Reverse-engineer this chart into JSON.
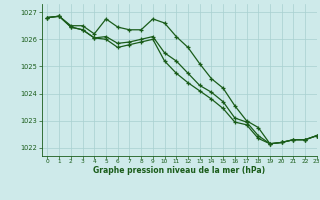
{
  "title": "Graphe pression niveau de la mer (hPa)",
  "background_color": "#ceeaea",
  "grid_color": "#a8d0d0",
  "line_color": "#1a5c1a",
  "xlim": [
    -0.5,
    23
  ],
  "ylim": [
    1021.7,
    1027.3
  ],
  "yticks": [
    1022,
    1023,
    1024,
    1025,
    1026,
    1027
  ],
  "xticks": [
    0,
    1,
    2,
    3,
    4,
    5,
    6,
    7,
    8,
    9,
    10,
    11,
    12,
    13,
    14,
    15,
    16,
    17,
    18,
    19,
    20,
    21,
    22,
    23
  ],
  "line1_x": [
    0,
    1,
    2,
    3,
    4,
    5,
    6,
    7,
    8,
    9,
    10,
    11,
    12,
    13,
    14,
    15,
    16,
    17,
    18,
    19,
    20,
    21,
    22,
    23
  ],
  "line1_y": [
    1026.8,
    1026.85,
    1026.5,
    1026.5,
    1026.2,
    1026.75,
    1026.45,
    1026.35,
    1026.35,
    1026.75,
    1026.6,
    1026.1,
    1025.7,
    1025.1,
    1024.55,
    1024.2,
    1023.55,
    1023.0,
    1022.75,
    1022.15,
    1022.2,
    1022.3,
    1022.3,
    1022.45
  ],
  "line2_x": [
    0,
    1,
    2,
    3,
    4,
    5,
    6,
    7,
    8,
    9,
    10,
    11,
    12,
    13,
    14,
    15,
    16,
    17,
    18,
    19,
    20,
    21,
    22,
    23
  ],
  "line2_y": [
    1026.8,
    1026.85,
    1026.45,
    1026.35,
    1026.05,
    1026.1,
    1025.85,
    1025.9,
    1026.0,
    1026.1,
    1025.5,
    1025.2,
    1024.75,
    1024.3,
    1024.05,
    1023.7,
    1023.1,
    1022.95,
    1022.45,
    1022.15,
    1022.2,
    1022.3,
    1022.3,
    1022.45
  ],
  "line3_x": [
    0,
    1,
    2,
    3,
    4,
    5,
    6,
    7,
    8,
    9,
    10,
    11,
    12,
    13,
    14,
    15,
    16,
    17,
    18,
    19,
    20,
    21,
    22,
    23
  ],
  "line3_y": [
    1026.8,
    1026.85,
    1026.45,
    1026.35,
    1026.05,
    1026.0,
    1025.7,
    1025.8,
    1025.9,
    1026.0,
    1025.2,
    1024.75,
    1024.4,
    1024.1,
    1023.8,
    1023.45,
    1022.95,
    1022.85,
    1022.35,
    1022.15,
    1022.2,
    1022.3,
    1022.3,
    1022.45
  ]
}
